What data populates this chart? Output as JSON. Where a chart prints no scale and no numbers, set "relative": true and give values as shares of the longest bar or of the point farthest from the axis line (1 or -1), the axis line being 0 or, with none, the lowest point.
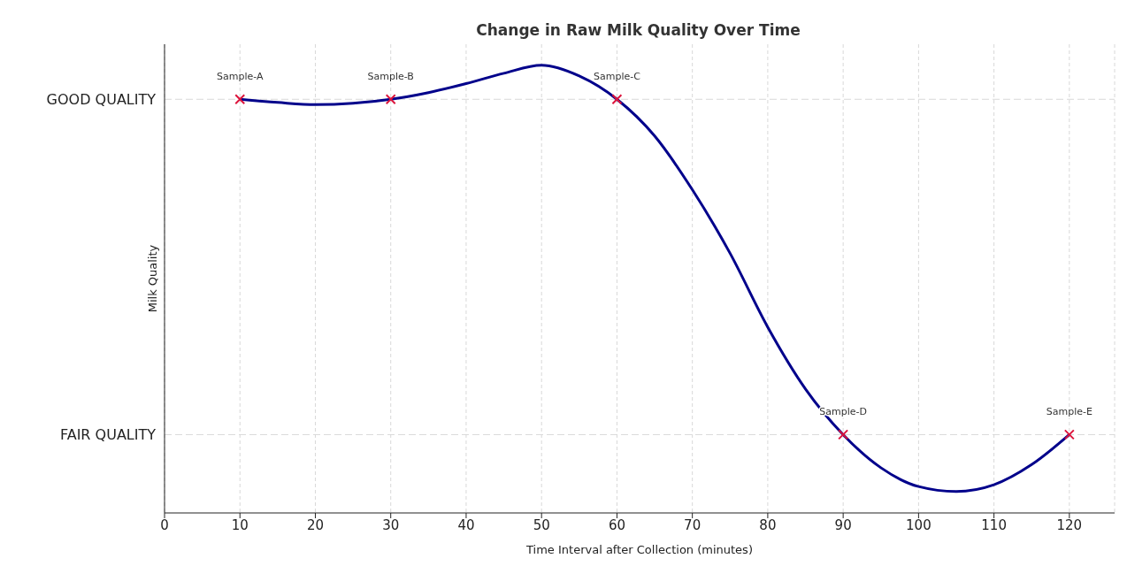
{
  "chart_data": {
    "type": "line",
    "title": "Change in Raw Milk Quality Over Time",
    "xlabel": "Time Interval after Collection (minutes)",
    "ylabel": "Milk Quality",
    "relative": true,
    "xlim": [
      0,
      126
    ],
    "xticks": [
      0,
      10,
      20,
      30,
      40,
      50,
      60,
      70,
      80,
      90,
      100,
      110,
      120
    ],
    "ref_lines": [
      {
        "axis": "y",
        "value": 0.924,
        "label": "GOOD QUALITY",
        "color": "#d8d8d8",
        "line_style": "dashed"
      },
      {
        "axis": "y",
        "value": 0.175,
        "label": "FAIR QUALITY",
        "color": "#d8d8d8",
        "line_style": "dashed"
      }
    ],
    "grid": "x",
    "series": [
      {
        "color": "#00008b",
        "x": [
          10,
          15,
          20,
          25,
          30,
          35,
          40,
          45,
          50,
          55,
          60,
          65,
          70,
          75,
          80,
          85,
          90,
          95,
          100,
          105,
          110,
          115,
          120
        ],
        "values": [
          0.924,
          0.917,
          0.912,
          0.915,
          0.924,
          0.939,
          0.959,
          0.982,
          1,
          0.976,
          0.924,
          0.842,
          0.722,
          0.58,
          0.415,
          0.277,
          0.175,
          0.101,
          0.059,
          0.048,
          0.063,
          0.108,
          0.175
        ]
      },
      {
        "type": "scatter",
        "color": "#dc143c",
        "marker": "cross",
        "x": [
          10,
          30,
          60,
          90,
          120
        ],
        "values": [
          0.924,
          0.924,
          0.924,
          0.175,
          0.175
        ]
      }
    ],
    "annotations": [
      {
        "text": "Sample-A",
        "x": 10,
        "y": 0.924
      },
      {
        "text": "Sample-B",
        "x": 30,
        "y": 0.924
      },
      {
        "text": "Sample-C",
        "x": 60,
        "y": 0.924
      },
      {
        "text": "Sample-D",
        "x": 90,
        "y": 0.175
      },
      {
        "text": "Sample-E",
        "x": 120,
        "y": 0.175
      }
    ]
  }
}
